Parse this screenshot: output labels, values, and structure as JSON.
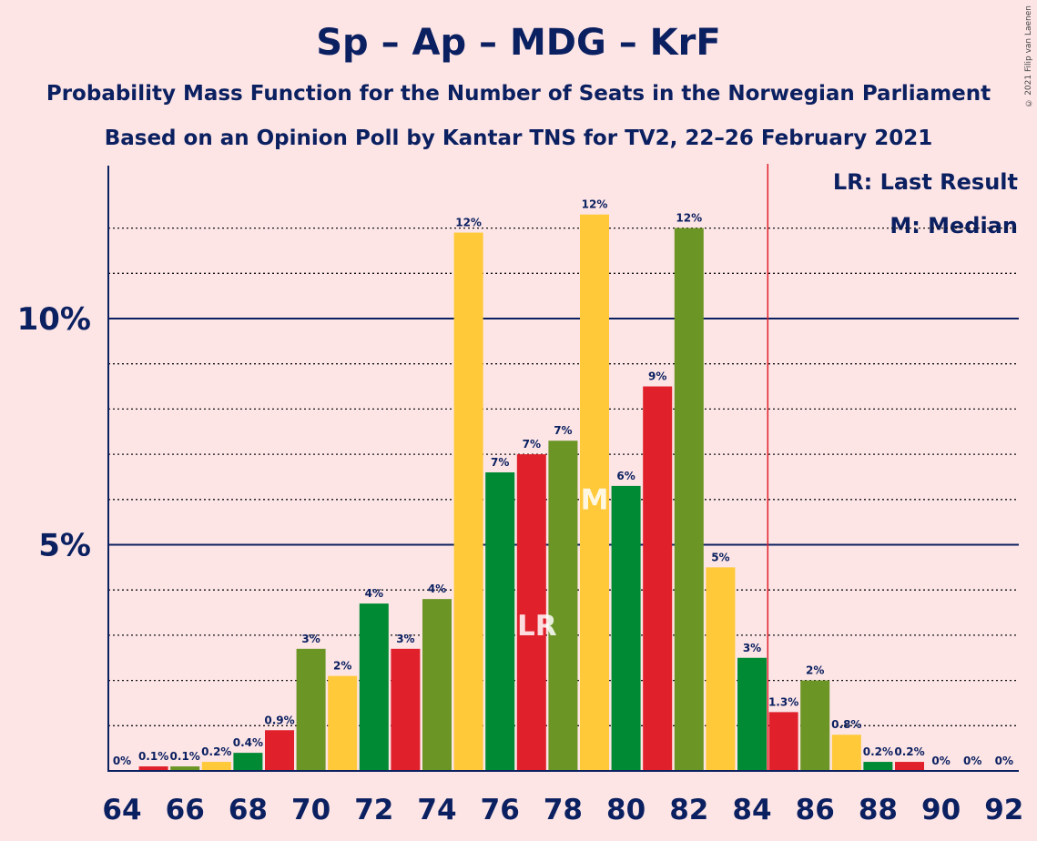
{
  "title": "Sp – Ap – MDG – KrF",
  "subtitle1": "Probability Mass Function for the Number of Seats in the Norwegian Parliament",
  "subtitle2": "Based on an Opinion Poll by Kantar TNS for TV2, 22–26 February 2021",
  "copyright": "© 2021 Filip van Laenen",
  "legend": {
    "lr": "LR: Last Result",
    "m": "M: Median"
  },
  "colors": {
    "background": "#fde5e6",
    "axis": "#0b2060",
    "last_result_line": "#e0202a"
  },
  "chart_data": {
    "type": "bar",
    "x": [
      64,
      65,
      66,
      67,
      68,
      69,
      70,
      71,
      72,
      73,
      74,
      75,
      76,
      77,
      78,
      79,
      80,
      81,
      82,
      83,
      84,
      85,
      86,
      87,
      88,
      89,
      90,
      91,
      92
    ],
    "values": [
      0,
      0.1,
      0.1,
      0.2,
      0.4,
      0.9,
      2.7,
      2.1,
      3.7,
      2.7,
      3.8,
      11.9,
      6.6,
      7.0,
      7.3,
      12.3,
      6.3,
      8.5,
      12.0,
      4.5,
      2.5,
      1.3,
      2.0,
      0.8,
      0.2,
      0.2,
      0,
      0,
      0
    ],
    "labels": [
      "0%",
      "0.1%",
      "0.1%",
      "0.2%",
      "0.4%",
      "0.9%",
      "3%",
      "2%",
      "4%",
      "3%",
      "4%",
      "12%",
      "7%",
      "7%",
      "7%",
      "12%",
      "6%",
      "9%",
      "12%",
      "5%",
      "3%",
      "1.3%",
      "2%",
      "0.8%",
      "0.2%",
      "0.2%",
      "0%",
      "0%",
      "0%"
    ],
    "bar_colors": [
      "#008a33",
      "#e0202a",
      "#6b9525",
      "#ffc93a",
      "#008a33",
      "#e0202a",
      "#6b9525",
      "#ffc93a",
      "#008a33",
      "#e0202a",
      "#6b9525",
      "#ffc93a",
      "#008a33",
      "#e0202a",
      "#6b9525",
      "#ffc93a",
      "#008a33",
      "#e0202a",
      "#6b9525",
      "#ffc93a",
      "#008a33",
      "#e0202a",
      "#6b9525",
      "#ffc93a",
      "#008a33",
      "#e0202a",
      "#6b9525",
      "#ffc93a",
      "#008a33"
    ],
    "x_tick_labels": [
      "64",
      "66",
      "68",
      "70",
      "72",
      "74",
      "76",
      "78",
      "80",
      "82",
      "84",
      "86",
      "88",
      "90",
      "92"
    ],
    "y_tick_labels": [
      "5%",
      "10%"
    ],
    "y_ticks": [
      5,
      10
    ],
    "ylim": [
      0,
      13.4
    ],
    "last_result": 77,
    "last_result_label": "LR",
    "median": 79,
    "median_label": "M",
    "majority_line_x": 84.5,
    "grid": "dotted minor every 1%, solid major every 5%"
  }
}
